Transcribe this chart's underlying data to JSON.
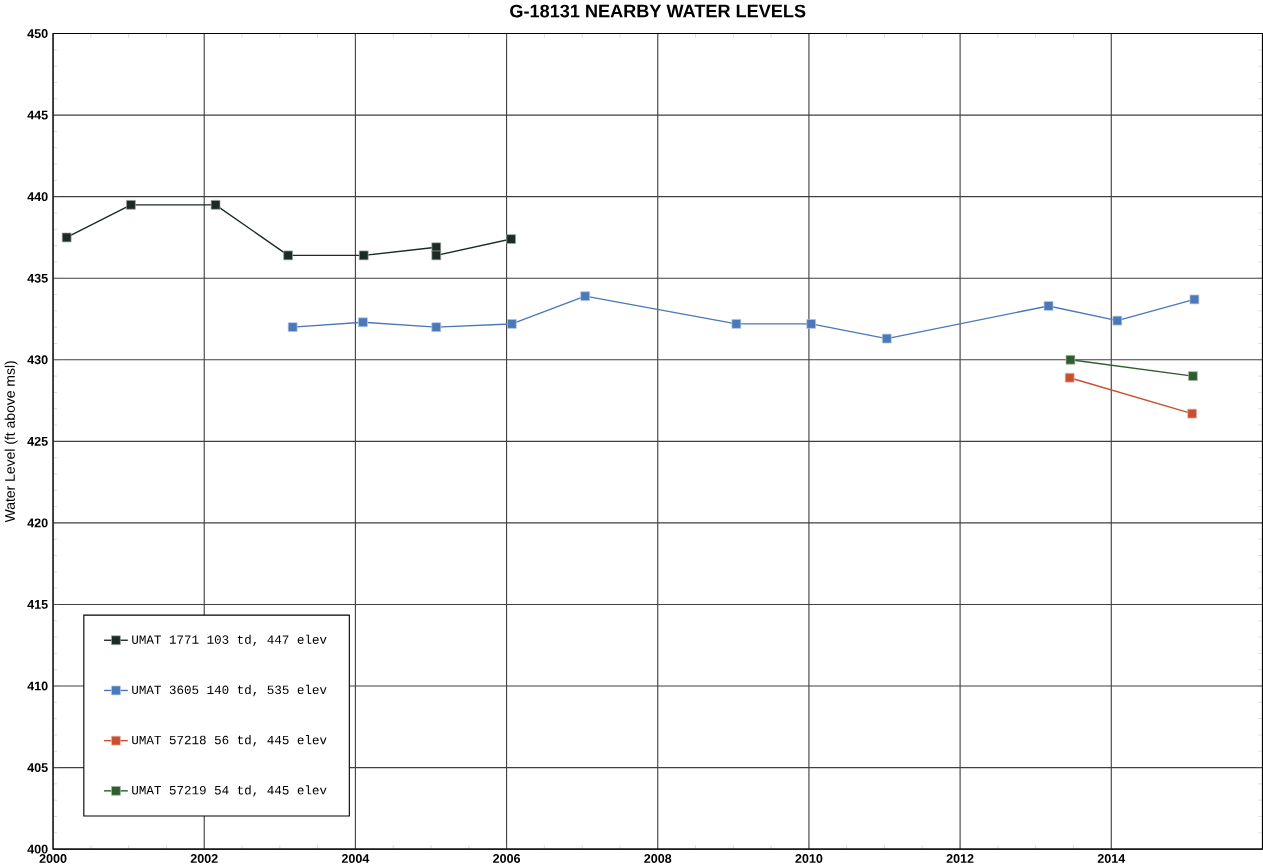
{
  "chart_data": {
    "type": "line",
    "title": "G-18131 NEARBY WATER LEVELS",
    "ylabel": "Water Level (ft above msl)",
    "xlim": [
      2000,
      2016
    ],
    "xticks": [
      2000,
      2002,
      2004,
      2006,
      2008,
      2010,
      2012,
      2014
    ],
    "ylim": [
      400,
      450
    ],
    "yticks": [
      400,
      405,
      410,
      415,
      420,
      425,
      430,
      435,
      440,
      445,
      450
    ],
    "grid": true,
    "legend": "bottom left",
    "marker": "square",
    "line_style": "solid",
    "series": [
      {
        "name": "UMAT 1771 103 td, 447 elev",
        "color": "#1c2b24",
        "x": [
          2000.18,
          2001.03,
          2002.15,
          2003.11,
          2004.11,
          2005.07,
          2005.07,
          2006.06
        ],
        "values": [
          437.5,
          439.5,
          439.5,
          436.4,
          436.4,
          436.9,
          436.4,
          437.4
        ]
      },
      {
        "name": "UMAT 3605 140 td, 535 elev",
        "color": "#4a78b8",
        "x": [
          2003.17,
          2004.1,
          2005.07,
          2006.07,
          2007.04,
          2009.04,
          2010.03,
          2011.03,
          2013.17,
          2014.08,
          2015.1
        ],
        "values": [
          432.0,
          432.3,
          432.0,
          432.2,
          433.9,
          432.2,
          432.2,
          431.3,
          433.3,
          432.4,
          433.7
        ]
      },
      {
        "name": "UMAT 57218 56 td, 445 elev",
        "color": "#c85030",
        "x": [
          2013.45,
          2015.07
        ],
        "values": [
          428.9,
          426.7
        ]
      },
      {
        "name": "UMAT 57219 54 td, 445 elev",
        "color": "#2e5e2e",
        "x": [
          2013.46,
          2015.08
        ],
        "values": [
          430.0,
          429.0
        ]
      }
    ]
  }
}
